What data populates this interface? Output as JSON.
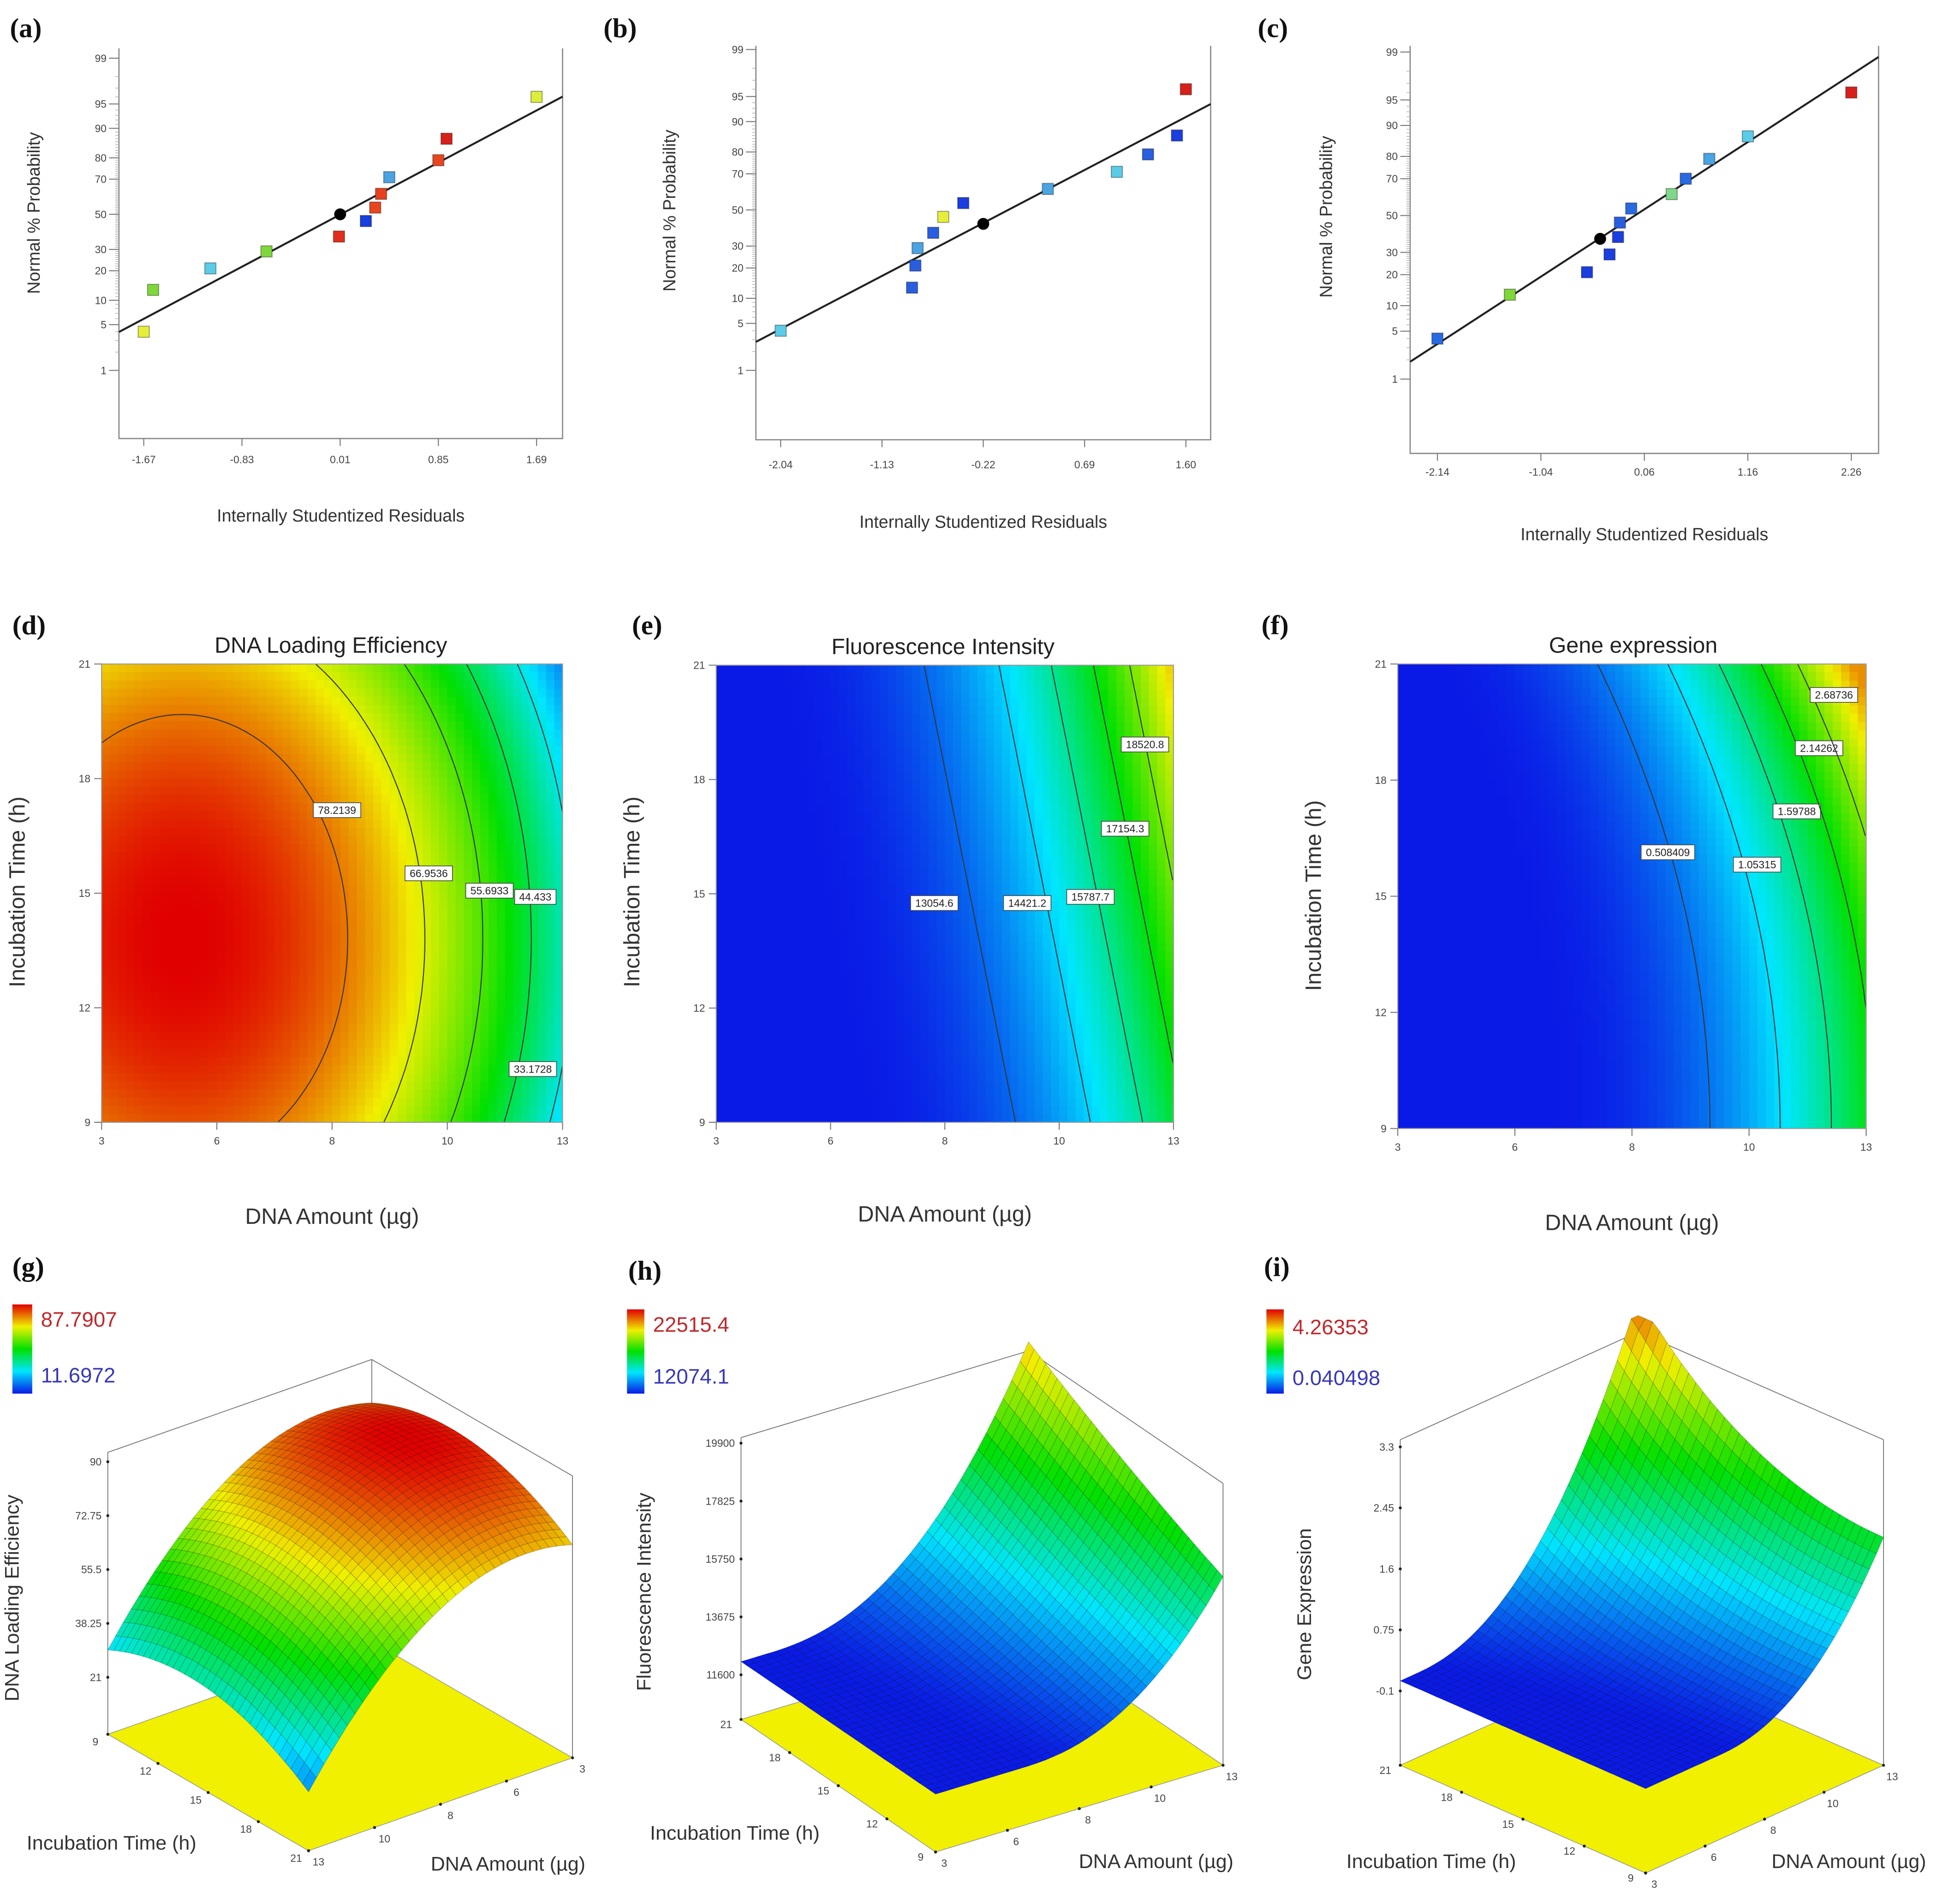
{
  "chart_data": [
    {
      "id": "a",
      "type": "scatter",
      "panel_label": "(a)",
      "xlabel": "Internally Studentized Residuals",
      "ylabel": "Normal % Probability",
      "xticks": [
        "-1.67",
        "-0.83",
        "0.01",
        "0.85",
        "1.69"
      ],
      "yticks": [
        "1",
        "5",
        "10",
        "20",
        "30",
        "50",
        "70",
        "80",
        "90",
        "95",
        "99"
      ],
      "fit_line": true,
      "points": [
        {
          "x": -1.67,
          "y": 4,
          "color": "#e6ee3a"
        },
        {
          "x": -1.59,
          "y": 13,
          "color": "#7fd83a"
        },
        {
          "x": -1.1,
          "y": 21,
          "color": "#5ccbe8"
        },
        {
          "x": -0.62,
          "y": 29,
          "color": "#7fd83a"
        },
        {
          "x": 0.0,
          "y": 37,
          "color": "#e0301c"
        },
        {
          "x": 0.01,
          "y": 50,
          "color": "#000000",
          "marker": "circle"
        },
        {
          "x": 0.23,
          "y": 46,
          "color": "#1a3ee0"
        },
        {
          "x": 0.31,
          "y": 54,
          "color": "#e8461e"
        },
        {
          "x": 0.36,
          "y": 62,
          "color": "#e8401e"
        },
        {
          "x": 0.43,
          "y": 71,
          "color": "#4aa4e2"
        },
        {
          "x": 0.85,
          "y": 79,
          "color": "#e8461e"
        },
        {
          "x": 0.92,
          "y": 87,
          "color": "#d8201a"
        },
        {
          "x": 1.69,
          "y": 96,
          "color": "#dcee3a"
        }
      ]
    },
    {
      "id": "b",
      "type": "scatter",
      "panel_label": "(b)",
      "xlabel": "Internally Studentized Residuals",
      "ylabel": "Normal % Probability",
      "xticks": [
        "-2.04",
        "-1.13",
        "-0.22",
        "0.69",
        "1.60"
      ],
      "yticks": [
        "1",
        "5",
        "10",
        "20",
        "30",
        "50",
        "70",
        "80",
        "90",
        "95",
        "99"
      ],
      "fit_line": true,
      "points": [
        {
          "x": -2.04,
          "y": 4,
          "color": "#5ccbe8"
        },
        {
          "x": -0.86,
          "y": 13,
          "color": "#2a5ee0"
        },
        {
          "x": -0.83,
          "y": 21,
          "color": "#2a5ee0"
        },
        {
          "x": -0.81,
          "y": 29,
          "color": "#4aa4e2"
        },
        {
          "x": -0.67,
          "y": 37,
          "color": "#2a5ee0"
        },
        {
          "x": -0.58,
          "y": 46,
          "color": "#e6ee3a"
        },
        {
          "x": -0.4,
          "y": 54,
          "color": "#1a3ee0"
        },
        {
          "x": -0.22,
          "y": 42,
          "color": "#000000",
          "marker": "circle"
        },
        {
          "x": 0.36,
          "y": 62,
          "color": "#4aa4e2"
        },
        {
          "x": 0.98,
          "y": 71,
          "color": "#5ccbe8"
        },
        {
          "x": 1.26,
          "y": 79,
          "color": "#2a5ee0"
        },
        {
          "x": 1.52,
          "y": 86,
          "color": "#1a3ee0"
        },
        {
          "x": 1.6,
          "y": 96,
          "color": "#d8201a"
        }
      ]
    },
    {
      "id": "c",
      "type": "scatter",
      "panel_label": "(c)",
      "xlabel": "Internally Studentized Residuals",
      "ylabel": "Normal % Probability",
      "xticks": [
        "-2.14",
        "-1.04",
        "0.06",
        "1.16",
        "2.26"
      ],
      "yticks": [
        "1",
        "5",
        "10",
        "20",
        "30",
        "50",
        "70",
        "80",
        "90",
        "95",
        "99"
      ],
      "fit_line": true,
      "points": [
        {
          "x": -2.14,
          "y": 4,
          "color": "#2a6ae0"
        },
        {
          "x": -1.37,
          "y": 13,
          "color": "#7fd83a"
        },
        {
          "x": -0.55,
          "y": 21,
          "color": "#1a3ee0"
        },
        {
          "x": -0.31,
          "y": 29,
          "color": "#1a3ee0"
        },
        {
          "x": -0.41,
          "y": 37,
          "color": "#000000",
          "marker": "circle"
        },
        {
          "x": -0.22,
          "y": 38,
          "color": "#1a3ee0"
        },
        {
          "x": -0.2,
          "y": 46,
          "color": "#2a5ee0"
        },
        {
          "x": -0.08,
          "y": 54,
          "color": "#2a6ae0"
        },
        {
          "x": 0.35,
          "y": 62,
          "color": "#7fd88a"
        },
        {
          "x": 0.5,
          "y": 70,
          "color": "#2a6ae0"
        },
        {
          "x": 0.75,
          "y": 79,
          "color": "#4aa4e2"
        },
        {
          "x": 1.16,
          "y": 87,
          "color": "#5ccbe8"
        },
        {
          "x": 2.26,
          "y": 96,
          "color": "#d8201a"
        }
      ]
    },
    {
      "id": "d",
      "type": "heatmap",
      "panel_label": "(d)",
      "title": "DNA Loading Efficiency",
      "xlabel": "DNA Amount (µg)",
      "ylabel": "Incubation Time (h)",
      "xticks": [
        "3",
        "6",
        "8",
        "10",
        "13"
      ],
      "yticks": [
        "9",
        "12",
        "15",
        "18",
        "21"
      ],
      "contour_labels": [
        "78.2139",
        "66.9536",
        "55.6933",
        "44.433",
        "33.1728"
      ],
      "zrange": [
        11.6972,
        87.7907
      ]
    },
    {
      "id": "e",
      "type": "heatmap",
      "panel_label": "(e)",
      "title": "Fluorescence Intensity",
      "xlabel": "DNA Amount (µg)",
      "ylabel": "Incubation Time (h)",
      "xticks": [
        "3",
        "6",
        "8",
        "10",
        "13"
      ],
      "yticks": [
        "9",
        "12",
        "15",
        "18",
        "21"
      ],
      "contour_labels": [
        "13054.6",
        "14421.2",
        "15787.7",
        "17154.3",
        "18520.8"
      ],
      "zrange": [
        12074.1,
        22515.4
      ]
    },
    {
      "id": "f",
      "type": "heatmap",
      "panel_label": "(f)",
      "title": "Gene expression",
      "xlabel": "DNA Amount (µg)",
      "ylabel": "Incubation Time (h)",
      "xticks": [
        "3",
        "6",
        "8",
        "10",
        "13"
      ],
      "yticks": [
        "9",
        "12",
        "15",
        "18",
        "21"
      ],
      "contour_labels": [
        "0.508409",
        "1.05315",
        "1.59788",
        "2.14262",
        "2.68736"
      ],
      "zrange": [
        0.040498,
        4.26353
      ]
    },
    {
      "id": "g",
      "type": "surface",
      "panel_label": "(g)",
      "zlabel": "DNA Loading Efficiency",
      "xlabel": "DNA Amount (µg)",
      "ylabel": "Incubation Time (h)",
      "xticks": [
        "3",
        "6",
        "8",
        "10",
        "13"
      ],
      "yticks": [
        "9",
        "12",
        "15",
        "18",
        "21"
      ],
      "zticks": [
        "21",
        "38.25",
        "55.5",
        "72.75",
        "90"
      ],
      "colorbar": {
        "max": "87.7907",
        "min": "11.6972"
      }
    },
    {
      "id": "h",
      "type": "surface",
      "panel_label": "(h)",
      "zlabel": "Fluorescence Intensity",
      "xlabel": "DNA Amount (µg)",
      "ylabel": "Incubation Time (h)",
      "xticks": [
        "3",
        "6",
        "8",
        "10",
        "13"
      ],
      "yticks": [
        "9",
        "12",
        "15",
        "18",
        "21"
      ],
      "zticks": [
        "11600",
        "13675",
        "15750",
        "17825",
        "19900"
      ],
      "colorbar": {
        "max": "22515.4",
        "min": "12074.1"
      }
    },
    {
      "id": "i",
      "type": "surface",
      "panel_label": "(i)",
      "zlabel": "Gene Expression",
      "xlabel": "DNA Amount (µg)",
      "ylabel": "Incubation Time (h)",
      "xticks": [
        "3",
        "6",
        "8",
        "10",
        "13"
      ],
      "yticks": [
        "9",
        "12",
        "15",
        "18",
        "21"
      ],
      "zticks": [
        "-0.1",
        "0.75",
        "1.6",
        "2.45",
        "3.3"
      ],
      "colorbar": {
        "max": "4.26353",
        "min": "0.040498"
      }
    }
  ],
  "colors": {
    "colormap": [
      "#0a1ae6",
      "#00e6ff",
      "#00e000",
      "#f0f000",
      "#e00000"
    ],
    "floor": "#f0f000",
    "fit_line": "#222222"
  }
}
